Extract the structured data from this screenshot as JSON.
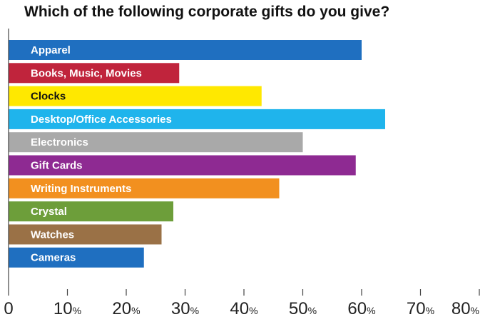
{
  "chart_data": {
    "type": "bar",
    "orientation": "horizontal",
    "title": "Which of the following corporate gifts do you give?",
    "categories": [
      "Apparel",
      "Books, Music, Movies",
      "Clocks",
      "Desktop/Office Accessories",
      "Electronics",
      "Gift Cards",
      "Writing Instruments",
      "Crystal",
      "Watches",
      "Cameras"
    ],
    "values": [
      60,
      29,
      43,
      64,
      50,
      59,
      46,
      28,
      26,
      23
    ],
    "colors": [
      "#1f6fc0",
      "#c0243c",
      "#ffe800",
      "#1fb4ec",
      "#a9a9a9",
      "#8e2a92",
      "#f2901f",
      "#6d9e3a",
      "#9a7146",
      "#1f6fc0"
    ],
    "label_colors": [
      "#ffffff",
      "#ffffff",
      "#111111",
      "#ffffff",
      "#ffffff",
      "#ffffff",
      "#ffffff",
      "#ffffff",
      "#ffffff",
      "#ffffff"
    ],
    "xlim": [
      0,
      80
    ],
    "xticks": [
      0,
      10,
      20,
      30,
      40,
      50,
      60,
      70,
      80
    ],
    "tick_suffix": "%",
    "grid": false,
    "legend": "none"
  }
}
